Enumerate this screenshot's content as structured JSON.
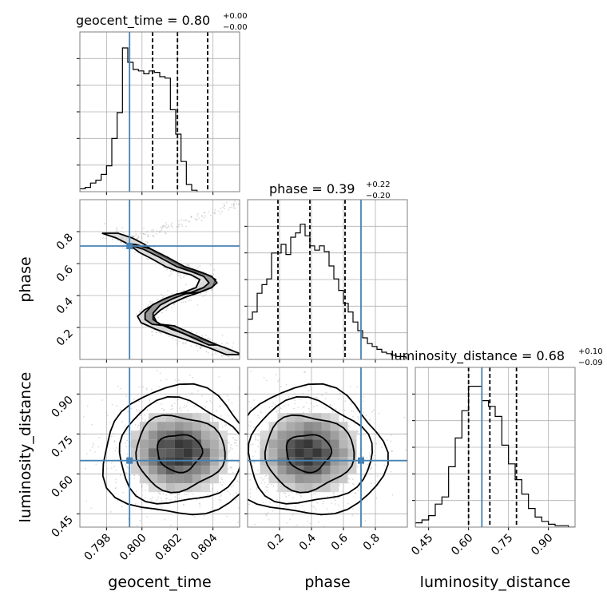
{
  "colors": {
    "truth": "#4682b4",
    "hist": "#000000",
    "points": "#999999",
    "grid": "#b0b0b0"
  },
  "chart_data": {
    "type": "corner",
    "parameters": [
      {
        "name": "geocent_time",
        "axis_label": "geocent_time",
        "title_prefix": "geocent_time = 0.80",
        "title_upper": "+0.00",
        "title_lower": "−0.00",
        "range": [
          0.7965,
          0.8055
        ],
        "ticks": [
          0.798,
          0.8,
          0.802,
          0.804
        ],
        "tick_labels": [
          "0.798",
          "0.800",
          "0.802",
          "0.804"
        ],
        "quantiles": [
          0.8006,
          0.802,
          0.8037
        ],
        "truth": 0.7993,
        "hist": {
          "edges_start": 0.7965,
          "bin_width": 0.0003,
          "counts": [
            0.02,
            0.03,
            0.06,
            0.08,
            0.12,
            0.18,
            0.37,
            0.55,
            1.0,
            0.9,
            0.85,
            0.84,
            0.82,
            0.84,
            0.83,
            0.8,
            0.79,
            0.57,
            0.4,
            0.21,
            0.05,
            0.01
          ]
        }
      },
      {
        "name": "phase",
        "axis_label": "phase",
        "title_prefix": "phase = 0.39",
        "title_upper": "+0.22",
        "title_lower": "−0.20",
        "range": [
          0.0,
          1.0
        ],
        "ticks": [
          0.2,
          0.4,
          0.6,
          0.8
        ],
        "tick_labels": [
          "0.2",
          "0.4",
          "0.6",
          "0.8"
        ],
        "quantiles": [
          0.19,
          0.39,
          0.61
        ],
        "truth": 0.71,
        "hist": {
          "edges_start": 0.0,
          "bin_width": 0.03,
          "counts": [
            0.28,
            0.33,
            0.46,
            0.52,
            0.56,
            0.74,
            0.74,
            0.8,
            0.73,
            0.85,
            0.88,
            0.94,
            0.86,
            0.79,
            0.76,
            0.79,
            0.75,
            0.65,
            0.56,
            0.48,
            0.39,
            0.33,
            0.26,
            0.2,
            0.15,
            0.11,
            0.09,
            0.07,
            0.05,
            0.04,
            0.03,
            0.02,
            0.02,
            0.01
          ]
        }
      },
      {
        "name": "luminosity_distance",
        "axis_label": "luminosity_distance",
        "title_prefix": "luminosity_distance = 0.68",
        "title_upper": "+0.10",
        "title_lower": "−0.09",
        "range": [
          0.4,
          1.0
        ],
        "ticks": [
          0.45,
          0.6,
          0.75,
          0.9
        ],
        "tick_labels": [
          "0.45",
          "0.60",
          "0.75",
          "0.90"
        ],
        "quantiles": [
          0.6,
          0.68,
          0.78
        ],
        "truth": 0.65,
        "hist": {
          "edges_start": 0.4,
          "bin_width": 0.025,
          "counts": [
            0.03,
            0.05,
            0.08,
            0.16,
            0.21,
            0.42,
            0.62,
            0.81,
            0.98,
            0.98,
            0.88,
            0.84,
            0.77,
            0.57,
            0.44,
            0.33,
            0.23,
            0.13,
            0.07,
            0.04,
            0.02,
            0.01,
            0.01,
            0.0
          ]
        }
      }
    ],
    "pairs": [
      {
        "x": "geocent_time",
        "y": "phase",
        "y_ticks": [
          0.2,
          0.4,
          0.6,
          0.8
        ],
        "y_tick_labels": [
          "0.2",
          "0.4",
          "0.6",
          "0.8"
        ],
        "y_range": [
          0.0,
          1.0
        ],
        "note": "S-shaped posterior band",
        "contour_paths": [
          [
            [
              0.7982,
              0.79
            ],
            [
              0.799,
              0.76
            ],
            [
              0.7997,
              0.72
            ],
            [
              0.8003,
              0.67
            ],
            [
              0.801,
              0.63
            ],
            [
              0.8018,
              0.58
            ],
            [
              0.8025,
              0.55
            ],
            [
              0.8032,
              0.53
            ],
            [
              0.8037,
              0.5
            ],
            [
              0.8035,
              0.45
            ],
            [
              0.8028,
              0.42
            ],
            [
              0.802,
              0.39
            ],
            [
              0.8012,
              0.35
            ],
            [
              0.8006,
              0.31
            ],
            [
              0.8002,
              0.27
            ],
            [
              0.8004,
              0.23
            ],
            [
              0.8012,
              0.19
            ],
            [
              0.8022,
              0.15
            ],
            [
              0.8033,
              0.11
            ],
            [
              0.8043,
              0.07
            ],
            [
              0.8052,
              0.03
            ]
          ],
          [
            [
              0.7994,
              0.72
            ],
            [
              0.8003,
              0.69
            ],
            [
              0.8012,
              0.64
            ],
            [
              0.8022,
              0.58
            ],
            [
              0.803,
              0.55
            ],
            [
              0.8037,
              0.52
            ],
            [
              0.804,
              0.48
            ],
            [
              0.8037,
              0.45
            ],
            [
              0.803,
              0.42
            ],
            [
              0.8022,
              0.41
            ],
            [
              0.8015,
              0.38
            ],
            [
              0.8008,
              0.34
            ],
            [
              0.8004,
              0.29
            ],
            [
              0.8004,
              0.25
            ],
            [
              0.8008,
              0.22
            ],
            [
              0.8016,
              0.21
            ],
            [
              0.8024,
              0.17
            ],
            [
              0.8032,
              0.13
            ],
            [
              0.804,
              0.09
            ]
          ]
        ],
        "truth": [
          0.7993,
          0.71
        ]
      },
      {
        "x": "geocent_time",
        "y": "luminosity_distance",
        "y_ticks": [
          0.45,
          0.6,
          0.75,
          0.9
        ],
        "y_tick_labels": [
          "0.45",
          "0.60",
          "0.75",
          "0.90"
        ],
        "y_range": [
          0.4,
          1.0
        ],
        "center": [
          0.8021,
          0.68
        ],
        "truth": [
          0.7993,
          0.65
        ]
      },
      {
        "x": "phase",
        "y": "luminosity_distance",
        "center": [
          0.38,
          0.68
        ],
        "truth": [
          0.71,
          0.65
        ]
      }
    ]
  }
}
